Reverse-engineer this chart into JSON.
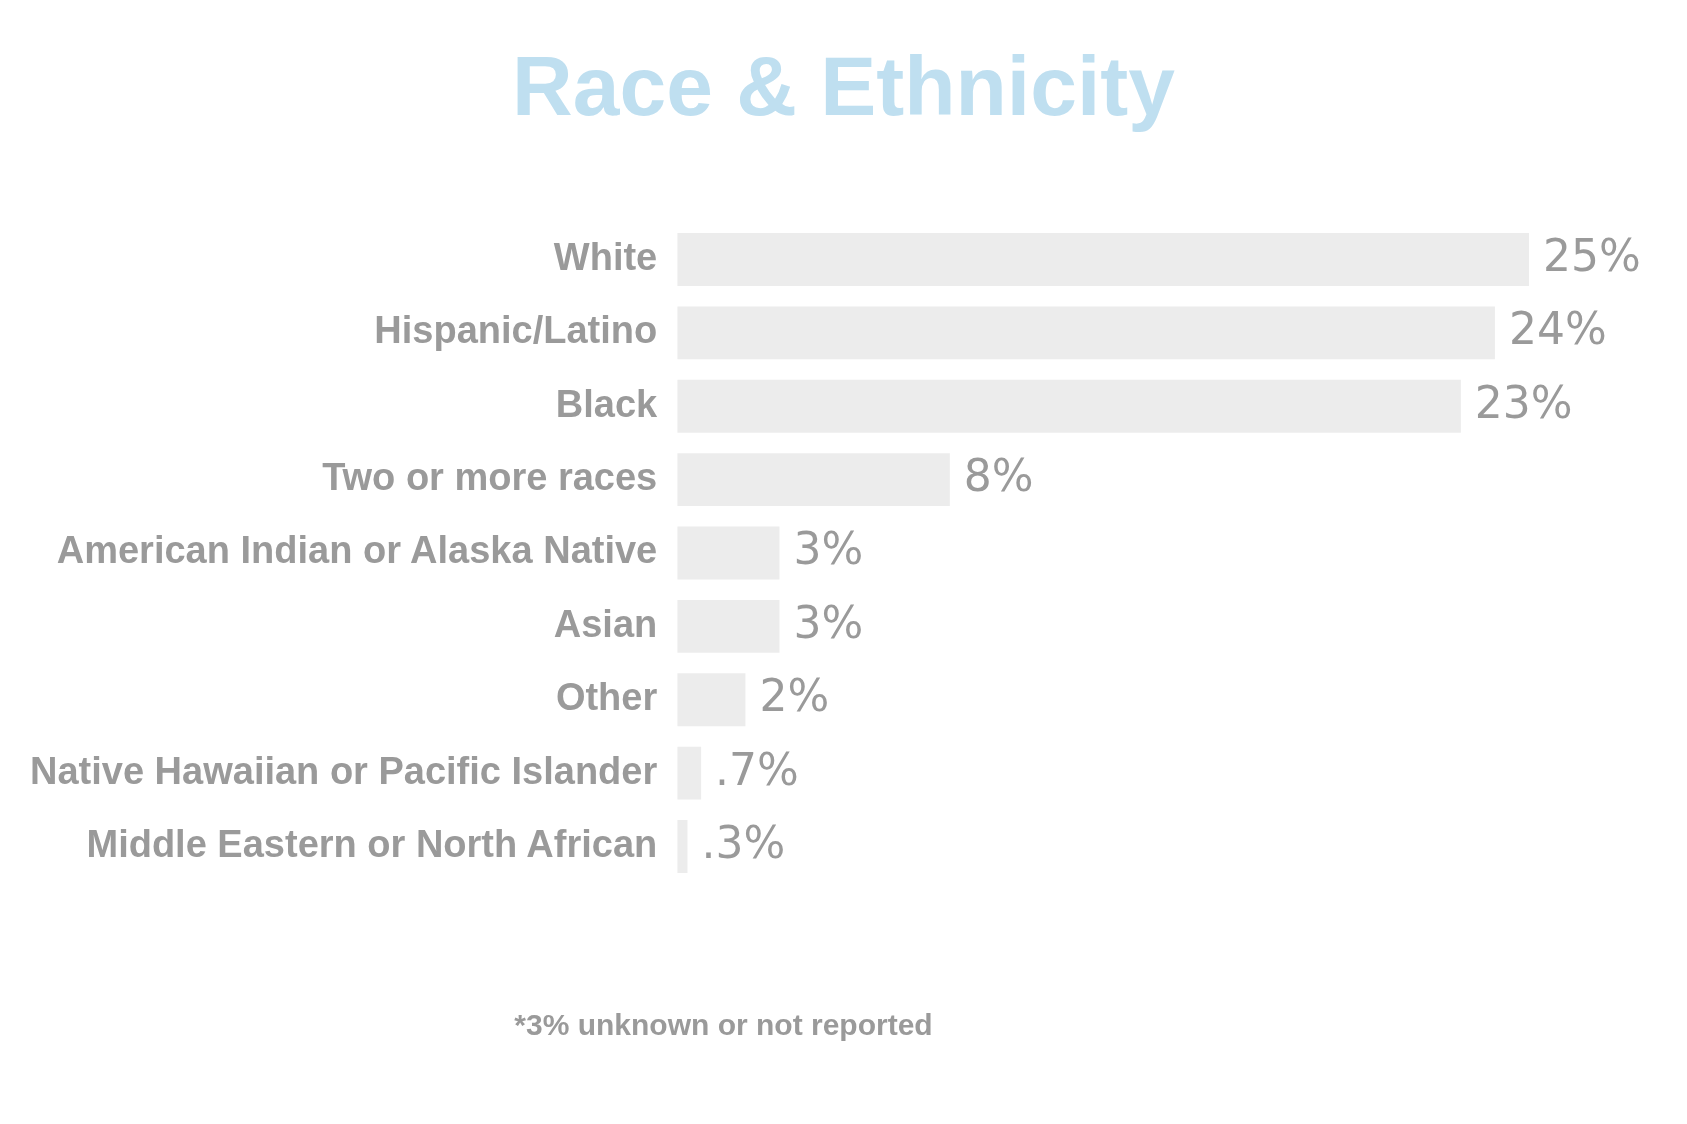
{
  "chart_data": {
    "type": "bar",
    "orientation": "horizontal",
    "title": "Race & Ethnicity",
    "categories": [
      "White",
      "Hispanic/Latino",
      "Black",
      "Two or more races",
      "American Indian or Alaska Native",
      "Asian",
      "Other",
      "Native Hawaiian or Pacific Islander",
      "Middle Eastern or North African"
    ],
    "values": [
      25,
      24,
      23,
      8,
      3,
      3,
      2,
      0.7,
      0.3
    ],
    "value_labels": [
      "25%",
      "24%",
      "23%",
      "8%",
      "3%",
      "3%",
      "2%",
      ".7%",
      ".3%"
    ],
    "color": "#ececec",
    "annotations": [
      "*3% unknown or not reported"
    ],
    "legend": false
  }
}
